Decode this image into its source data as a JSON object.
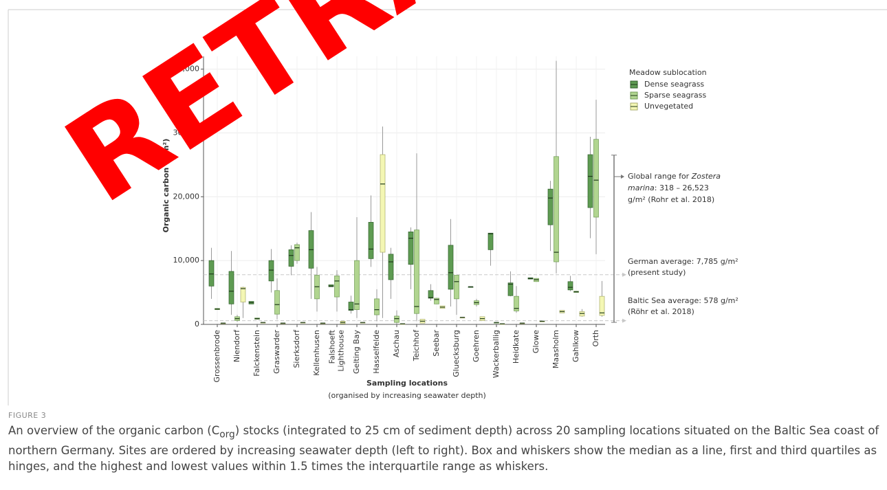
{
  "watermark": "RETRACTED",
  "chart_data": {
    "type": "box",
    "y_label": "Organic carbon (g/m²)",
    "x_label": "Sampling locations",
    "x_sublabel": "(organised by increasing seawater depth)",
    "legend_title": "Meadow sublocation",
    "legend": "right",
    "grid": true,
    "ylim": [
      0,
      42000
    ],
    "yticks": [
      0,
      {
        "value": 10000,
        "label": "10,000"
      },
      {
        "value": 20000,
        "label": "20,000"
      },
      {
        "value": 30000,
        "label": "30,000"
      },
      {
        "value": 40000,
        "label": "40,000"
      }
    ],
    "categories": [
      "Grossenbrode",
      "Niendorf",
      "Falckenstein",
      "Graswarder",
      "Sierksdorf",
      "Kellenhusen",
      "Falshoeft\nLighthouse",
      "Gelting Bay",
      "Hasselfelde",
      "Aschau",
      "Teichhof",
      "Seebar",
      "Gluecksburg",
      "Goehren",
      "Wackerballig",
      "Heidkate",
      "Glowe",
      "Maasholm",
      "Gahlkow",
      "Orth"
    ],
    "series": [
      {
        "name": "Dense seagrass",
        "color": "#5e9b52",
        "edge": "#2f5e2a",
        "boxes": [
          [
            4000,
            6000,
            7900,
            10000,
            12000
          ],
          [
            1500,
            3200,
            5200,
            8300,
            11500
          ],
          [
            3200,
            3200,
            3400,
            3600,
            3600
          ],
          [
            5000,
            6800,
            8500,
            10000,
            11800
          ],
          [
            7700,
            9100,
            10800,
            11700,
            12400
          ],
          [
            4000,
            8800,
            11700,
            14700,
            17600
          ],
          [
            5900,
            5900,
            6000,
            6200,
            6200
          ],
          [
            1700,
            2200,
            2300,
            3500,
            4500
          ],
          [
            9000,
            10300,
            11800,
            16000,
            20200
          ],
          [
            4000,
            7000,
            9800,
            11000,
            12000
          ],
          [
            5500,
            9400,
            13500,
            14500,
            15200
          ],
          [
            3700,
            4100,
            4200,
            5300,
            6300
          ],
          [
            2800,
            5500,
            8100,
            12400,
            16500
          ],
          [
            5900,
            5900,
            5900,
            5900,
            5900
          ],
          [
            9200,
            11700,
            14200,
            14300,
            14300
          ],
          [
            4400,
            4500,
            6300,
            6500,
            8300
          ],
          [
            7100,
            7100,
            7200,
            7300,
            7300
          ],
          [
            11500,
            15600,
            19800,
            21200,
            22500
          ],
          [
            5200,
            5400,
            5800,
            6700,
            7600
          ],
          [
            13500,
            18300,
            23200,
            26600,
            29400
          ]
        ]
      },
      {
        "name": "Sparse seagrass",
        "color": "#b1d590",
        "edge": "#6f9a55",
        "boxes": [
          [
            2300,
            2300,
            2400,
            2500,
            2500
          ],
          [
            400,
            600,
            900,
            1200,
            1500
          ],
          [
            800,
            800,
            900,
            1000,
            1000
          ],
          [
            800,
            1600,
            3100,
            5300,
            7200
          ],
          [
            9500,
            10000,
            12000,
            12500,
            12800
          ],
          [
            2000,
            4000,
            5900,
            7700,
            9000
          ],
          [
            2000,
            4300,
            6800,
            7600,
            8500
          ],
          [
            1000,
            2300,
            3200,
            10000,
            16800
          ],
          [
            500,
            1500,
            2300,
            4000,
            5500
          ],
          [
            100,
            300,
            900,
            1300,
            2200
          ],
          [
            500,
            1700,
            2800,
            14800,
            26800
          ],
          [
            3200,
            3200,
            3900,
            4100,
            4100
          ],
          [
            1500,
            4000,
            6700,
            7700,
            7700
          ],
          [
            2800,
            3100,
            3400,
            3700,
            4000
          ],
          [
            300,
            300,
            300,
            300,
            300
          ],
          [
            1800,
            2100,
            2500,
            4400,
            6000
          ],
          [
            6700,
            6700,
            7000,
            7200,
            7200
          ],
          [
            8000,
            9800,
            11300,
            26300,
            41300
          ],
          [
            5000,
            5000,
            5100,
            5200,
            5200
          ],
          [
            11000,
            16800,
            22600,
            29000,
            35200
          ]
        ]
      },
      {
        "name": "Unvegetated",
        "color": "#f4f7b4",
        "edge": "#a7ab6a",
        "boxes": [
          [
            200,
            200,
            200,
            200,
            200
          ],
          [
            1000,
            3500,
            5600,
            5800,
            5900
          ],
          [
            300,
            300,
            300,
            300,
            300
          ],
          [
            200,
            200,
            200,
            200,
            200
          ],
          [
            300,
            300,
            300,
            300,
            300
          ],
          [
            200,
            200,
            200,
            200,
            200
          ],
          [
            100,
            100,
            300,
            500,
            500
          ],
          [
            300,
            300,
            300,
            300,
            300
          ],
          [
            1000,
            11300,
            22000,
            26600,
            31000
          ],
          [
            100,
            100,
            100,
            100,
            100
          ],
          [
            200,
            200,
            500,
            800,
            800
          ],
          [
            2500,
            2500,
            2700,
            2900,
            2900
          ],
          [
            1100,
            1100,
            1100,
            1100,
            1100
          ],
          [
            600,
            600,
            900,
            1200,
            1200
          ],
          [
            100,
            100,
            100,
            100,
            100
          ],
          [
            200,
            200,
            200,
            200,
            200
          ],
          [
            500,
            500,
            500,
            500,
            500
          ],
          [
            1800,
            1800,
            2000,
            2200,
            2200
          ],
          [
            1200,
            1300,
            1700,
            2000,
            2400
          ],
          [
            1200,
            1400,
            1800,
            4400,
            6800
          ]
        ]
      }
    ],
    "reference_lines": [
      {
        "value": 7785,
        "label": [
          "German average: 7,785 g/m²",
          "(present study)"
        ]
      },
      {
        "value": 578,
        "label": [
          "Baltic Sea average: 578 g/m²",
          "(Röhr et al. 2018)"
        ]
      }
    ],
    "range_annotation": {
      "low": 318,
      "high": 26523,
      "label": [
        [
          {
            "text": "Global range for "
          },
          {
            "text": "Zostera",
            "italic": true
          }
        ],
        [
          {
            "text": "marina",
            "italic": true
          },
          {
            "text": ": 318 – 26,523"
          }
        ],
        [
          {
            "text": "g/m² (Rohr et al. 2018)"
          }
        ]
      ]
    }
  },
  "figure": {
    "label": "FIGURE 3",
    "caption": [
      {
        "text": "An overview of the organic carbon ("
      },
      {
        "text": "C"
      },
      {
        "text": "org",
        "sub": true
      },
      {
        "text": ") stocks (integrated to 25 cm of sediment depth) across 20 sampling locations situated on the Baltic Sea coast of northern Germany. Sites are ordered by increasing seawater depth (left to right). Box and whiskers show the median as a line, first and third quartiles as hinges, and the highest and lowest values within 1.5 times the interquartile range as whiskers."
      }
    ]
  }
}
